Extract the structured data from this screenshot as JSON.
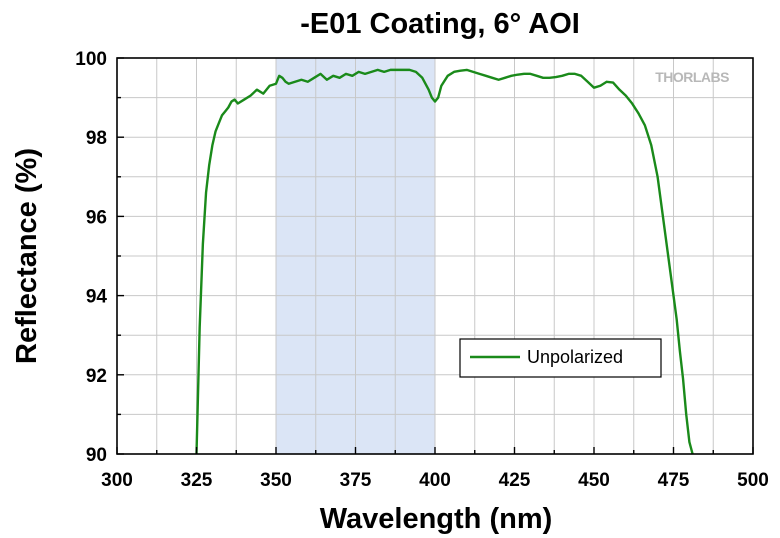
{
  "chart_data": {
    "type": "line",
    "title": "-E01 Coating, 6° AOI",
    "xlabel": "Wavelength (nm)",
    "ylabel": "Reflectance (%)",
    "xlim": [
      300,
      500
    ],
    "ylim": [
      90,
      100
    ],
    "x_ticks": [
      300,
      325,
      350,
      375,
      400,
      425,
      450,
      475,
      500
    ],
    "y_ticks": [
      90,
      92,
      94,
      96,
      98,
      100
    ],
    "grid": true,
    "legend_position": "center-right",
    "highlight_band": {
      "x_start": 350,
      "x_end": 400,
      "color": "#dbe5f6"
    },
    "series": [
      {
        "name": "Unpolarized",
        "color": "#1a8a1a",
        "x": [
          325,
          326,
          327,
          328,
          329,
          330,
          331,
          332,
          333,
          334,
          335,
          336,
          337,
          338,
          340,
          342,
          344,
          346,
          348,
          350,
          351,
          352,
          353,
          354,
          356,
          358,
          360,
          362,
          364,
          366,
          368,
          370,
          372,
          374,
          376,
          378,
          380,
          382,
          384,
          386,
          388,
          390,
          392,
          394,
          396,
          398,
          399,
          400,
          401,
          402,
          404,
          406,
          408,
          410,
          412,
          414,
          416,
          418,
          420,
          422,
          424,
          426,
          428,
          430,
          432,
          434,
          436,
          438,
          440,
          442,
          444,
          446,
          448,
          450,
          452,
          454,
          456,
          458,
          460,
          462,
          464,
          466,
          468,
          470,
          472,
          474,
          476,
          477,
          478,
          479,
          480,
          481
        ],
        "y": [
          90.0,
          93.2,
          95.3,
          96.6,
          97.3,
          97.8,
          98.15,
          98.35,
          98.55,
          98.65,
          98.75,
          98.9,
          98.95,
          98.85,
          98.95,
          99.05,
          99.2,
          99.1,
          99.3,
          99.35,
          99.55,
          99.5,
          99.4,
          99.35,
          99.4,
          99.45,
          99.4,
          99.5,
          99.6,
          99.45,
          99.55,
          99.5,
          99.6,
          99.55,
          99.65,
          99.6,
          99.65,
          99.7,
          99.65,
          99.7,
          99.7,
          99.7,
          99.7,
          99.65,
          99.5,
          99.2,
          99.0,
          98.9,
          99.0,
          99.3,
          99.55,
          99.65,
          99.68,
          99.7,
          99.65,
          99.6,
          99.55,
          99.5,
          99.45,
          99.5,
          99.55,
          99.58,
          99.6,
          99.6,
          99.55,
          99.5,
          99.5,
          99.52,
          99.55,
          99.6,
          99.6,
          99.55,
          99.4,
          99.25,
          99.3,
          99.4,
          99.38,
          99.2,
          99.05,
          98.85,
          98.6,
          98.3,
          97.8,
          97.0,
          95.8,
          94.6,
          93.4,
          92.6,
          91.9,
          91.0,
          90.3,
          90.0
        ]
      }
    ]
  },
  "watermark": {
    "logo_text": "THORLABS"
  }
}
